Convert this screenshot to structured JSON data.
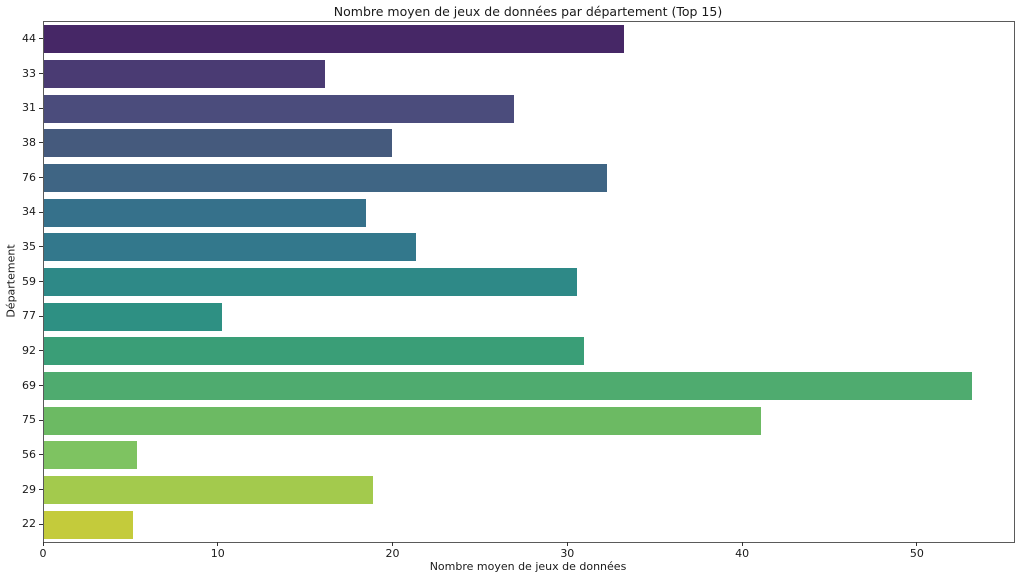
{
  "chart_data": {
    "type": "bar",
    "orientation": "horizontal",
    "title": "Nombre moyen de jeux de données par département (Top 15)",
    "xlabel": "Nombre moyen de jeux de données",
    "ylabel": "Département",
    "categories": [
      "44",
      "33",
      "31",
      "38",
      "76",
      "34",
      "35",
      "59",
      "77",
      "92",
      "69",
      "75",
      "56",
      "29",
      "22"
    ],
    "values": [
      33.2,
      16.1,
      26.9,
      19.9,
      32.2,
      18.4,
      21.3,
      30.5,
      10.2,
      30.9,
      53.1,
      41.0,
      5.3,
      18.8,
      5.1
    ],
    "bar_colors": [
      "#462766",
      "#4a3b73",
      "#4b4c7c",
      "#455a7d",
      "#3f6584",
      "#36718b",
      "#33788c",
      "#2e8987",
      "#2e9083",
      "#3a9e77",
      "#4fab6f",
      "#6cba63",
      "#7ec361",
      "#a3ca4d",
      "#c4cb3b"
    ],
    "palette": "viridis",
    "xlim": [
      0,
      55.5
    ],
    "xticks": [
      0,
      10,
      20,
      30,
      40,
      50
    ],
    "grid": false,
    "legend": "none",
    "bar_fraction_of_band": 0.8
  }
}
